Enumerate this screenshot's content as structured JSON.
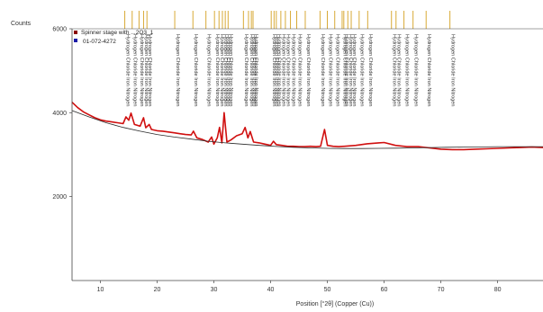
{
  "chart_data": {
    "type": "line",
    "ylabel": "Counts",
    "xlabel": "Position [°2θ] (Copper (Cu))",
    "xlim": [
      5,
      88
    ],
    "ylim": [
      0,
      6000
    ],
    "x_ticks": [
      "10",
      "20",
      "30",
      "40",
      "50",
      "60",
      "70",
      "80"
    ],
    "y_ticks": [
      "2000",
      "4000",
      "6000"
    ],
    "grid": false,
    "legend_position": "top-left",
    "legend": [
      {
        "label": "Spinner stage with ...2O3_1",
        "color": "#8b0000"
      },
      {
        "label": "01-072-4272",
        "color": "#1a1aa8"
      }
    ],
    "series": [
      {
        "color": "#d01010",
        "x": [
          5,
          6,
          7,
          8,
          9,
          10,
          11,
          12,
          13,
          14,
          14.5,
          15,
          15.4,
          16,
          17,
          17.6,
          18,
          18.6,
          19,
          20,
          21,
          22,
          23,
          24,
          25,
          26,
          26.4,
          27,
          28,
          29,
          29.6,
          30,
          30.6,
          31,
          31.4,
          31.8,
          32.3,
          33,
          34,
          35,
          35.5,
          36,
          36.4,
          37,
          38,
          39,
          40,
          40.5,
          41,
          42,
          43,
          44,
          45,
          46,
          47,
          48,
          48.8,
          49.5,
          50,
          51,
          52,
          53,
          54,
          55,
          56,
          57,
          58,
          59,
          60,
          62,
          64,
          66,
          68,
          70,
          72,
          74,
          76,
          78,
          80,
          82,
          84,
          86,
          88
        ],
        "y": [
          4250,
          4120,
          4020,
          3950,
          3880,
          3830,
          3800,
          3780,
          3760,
          3740,
          3900,
          3820,
          3990,
          3720,
          3680,
          3880,
          3640,
          3720,
          3600,
          3570,
          3560,
          3540,
          3520,
          3500,
          3480,
          3470,
          3560,
          3400,
          3360,
          3300,
          3420,
          3250,
          3400,
          3650,
          3280,
          4000,
          3300,
          3350,
          3450,
          3500,
          3650,
          3400,
          3550,
          3300,
          3280,
          3250,
          3220,
          3320,
          3240,
          3220,
          3200,
          3200,
          3190,
          3190,
          3200,
          3190,
          3200,
          3600,
          3220,
          3200,
          3190,
          3200,
          3210,
          3220,
          3240,
          3260,
          3270,
          3280,
          3290,
          3220,
          3190,
          3190,
          3160,
          3130,
          3120,
          3120,
          3130,
          3140,
          3150,
          3160,
          3170,
          3180,
          3170
        ]
      },
      {
        "color": "#2a2a2a",
        "x": [
          5,
          8,
          11,
          14,
          17,
          20,
          23,
          26,
          29,
          32,
          35,
          38,
          41,
          44,
          47,
          50,
          53,
          56,
          59,
          62,
          65,
          68,
          71,
          74,
          77,
          80,
          83,
          86,
          88
        ],
        "y": [
          4050,
          3900,
          3760,
          3650,
          3560,
          3480,
          3420,
          3370,
          3320,
          3280,
          3250,
          3220,
          3195,
          3175,
          3160,
          3150,
          3145,
          3145,
          3150,
          3155,
          3160,
          3170,
          3175,
          3180,
          3185,
          3190,
          3190,
          3190,
          3190
        ]
      }
    ],
    "peaks": {
      "color": "#d4a020",
      "positions": [
        14.3,
        15.6,
        16.8,
        17.6,
        18.2,
        23.1,
        26.3,
        28.6,
        30.1,
        30.9,
        31.5,
        32.0,
        32.5,
        35.2,
        36.1,
        36.6,
        36.9,
        40.1,
        40.6,
        41.0,
        41.8,
        42.6,
        43.5,
        44.6,
        46.1,
        48.7,
        50.0,
        51.3,
        52.6,
        52.9,
        53.6,
        54.2,
        55.6,
        57.1,
        61.3,
        62.1,
        63.5,
        65.1,
        67.4,
        71.6
      ],
      "labels": [
        "Hydrogen Chloride Iron Nitrogen",
        "Hydrogen Chloride Iron Nitrogen",
        "Hydrogen Chloride Iron Nitrogen",
        "Hydrogen Chloride Iron Nitrogen",
        "Hydrogen Chloride Iron Nitrogen",
        "Hydrogen Chloride Iron Nitrogen",
        "Hydrogen Chloride Iron Nitrogen",
        "Hydrogen Chloride Iron Nitrogen",
        "Hydrogen Chloride Iron Nitrogen",
        "Hydrogen Chloride Iron Nitrogen",
        "Hydrogen Chloride Iron Nitrogen",
        "Hydrogen Chloride Iron Nitrogen",
        "Hydrogen Chloride Iron Nitrogen",
        "Hydrogen Chloride Iron Nitrogen",
        "Hydrogen Chloride Iron Nitrogen",
        "Hydrogen Chloride Iron Nitrogen",
        "Hydrogen Chloride Iron Nitrogen",
        "Hydrogen Chloride Iron Nitrogen",
        "Hydrogen Chloride Iron Nitrogen",
        "Hydrogen Chloride Iron Nitrogen",
        "Hydrogen Chloride Iron Nitrogen",
        "Hydrogen Chloride Iron Nitrogen",
        "Hydrogen Chloride Iron Nitrogen",
        "Hydrogen Chloride Iron Nitrogen",
        "Hydrogen Chloride Iron Nitrogen",
        "Hydrogen Chloride Iron Nitrogen",
        "Hydrogen Chloride Iron Nitrogen",
        "Hydrogen Chloride Iron Nitrogen",
        "Hydrogen Chloride Iron Nitrogen",
        "Hydrogen Chloride Iron Nitrogen",
        "Hydrogen Chloride Iron Nitrogen",
        "Hydrogen Chloride Iron Nitrogen",
        "Hydrogen Chloride Iron Nitrogen",
        "Hydrogen Chloride Iron Nitrogen",
        "Hydrogen Chloride Iron Nitrogen",
        "Hydrogen Chloride Iron Nitrogen",
        "Hydrogen Chloride Iron Nitrogen",
        "Hydrogen Chloride Iron Nitrogen",
        "Hydrogen Chloride Iron Nitrogen",
        "Hydrogen Chloride Iron Nitrogen"
      ]
    }
  }
}
